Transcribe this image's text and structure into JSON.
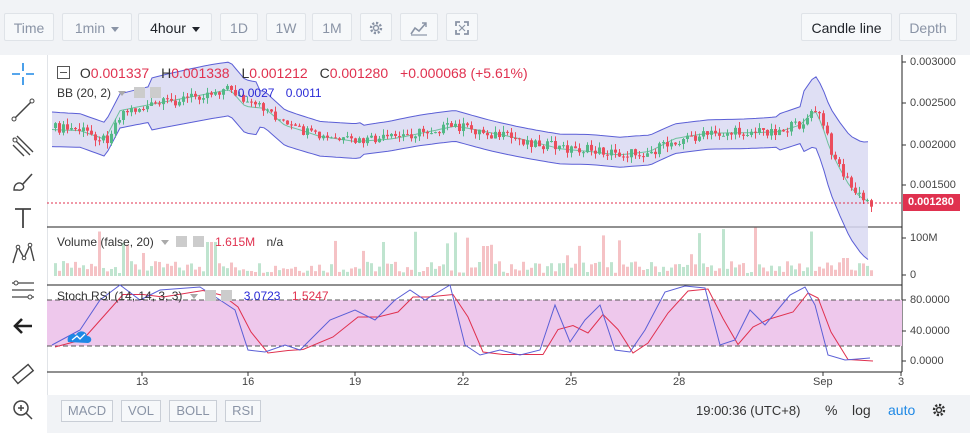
{
  "toolbar": {
    "time_label": "Time",
    "interval_label": "1min",
    "period_label": "4hour",
    "ranges": [
      "1D",
      "1W",
      "1M"
    ],
    "candle_line_label": "Candle line",
    "depth_label": "Depth"
  },
  "legend": {
    "ohlc": {
      "o_label": "O",
      "o": "0.001337",
      "h_label": "H",
      "h": "0.001338",
      "l_label": "L",
      "l": "0.001212",
      "c_label": "C",
      "c": "0.001280",
      "change": "+0.000068 (+5.61%)"
    },
    "bb": {
      "name": "BB (20, 2)",
      "v1": "0.0027",
      "v2": "0.0011"
    },
    "volume": {
      "name": "Volume (false, 20)",
      "value": "1.615M",
      "na": "n/a"
    },
    "stoch": {
      "name": "Stoch RSI (14, 14, 3, 3)",
      "k": "3.0723",
      "d": "1.5247"
    }
  },
  "price_axis": {
    "ticks": [
      "0.003000",
      "0.002500",
      "0.002000",
      "0.001500"
    ],
    "current_price": "0.001280"
  },
  "volume_axis": {
    "ticks": [
      "100M",
      "0"
    ]
  },
  "stoch_axis": {
    "ticks": [
      "80.0000",
      "40.0000",
      "0.0000"
    ]
  },
  "time_axis": {
    "ticks": [
      "13",
      "16",
      "19",
      "22",
      "25",
      "28",
      "Sep",
      "3"
    ]
  },
  "bottom": {
    "indicators": [
      "MACD",
      "VOL",
      "BOLL",
      "RSI"
    ],
    "clock": "19:00:36 (UTC+8)",
    "percent": "%",
    "log": "log",
    "auto": "auto"
  },
  "colors": {
    "up": "#53b987",
    "down": "#eb4d5c",
    "bb_band": "#5b5fd6",
    "bb_fill": "#d9d9f2",
    "stoch_fill": "#eec8ec",
    "stoch_k": "#5b5fd6",
    "stoch_d": "#e0314f",
    "accent": "#1e88e5"
  },
  "chart_data": {
    "type": "candlestick",
    "x_ticks": [
      "13",
      "16",
      "19",
      "22",
      "25",
      "28",
      "Sep",
      "3"
    ],
    "y_ticks": [
      "0.003000",
      "0.002500",
      "0.002000",
      "0.001500"
    ],
    "ylim": [
      0.0011,
      0.0031
    ],
    "last_close": 0.00128,
    "series": [
      {
        "name": "BB (20, 2)",
        "upper_end": 0.0027,
        "lower_end": 0.0011
      },
      {
        "name": "Stoch RSI %K",
        "last": 3.0723
      },
      {
        "name": "Stoch RSI %D",
        "last": 1.5247
      }
    ]
  }
}
